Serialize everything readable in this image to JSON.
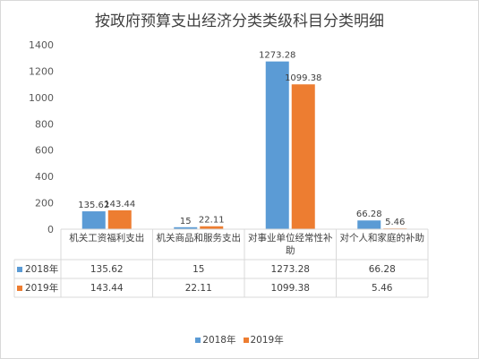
{
  "chart_data": {
    "type": "bar",
    "title": "按政府预算支出经济分类类级科目分类明细",
    "categories": [
      "机关工资福利支出",
      "机关商品和服务支出",
      "对事业单位经常性补助",
      "对个人和家庭的补助"
    ],
    "series": [
      {
        "name": "2018年",
        "values": [
          135.62,
          15,
          1273.28,
          66.28
        ],
        "labels": [
          "135.62",
          "15",
          "1273.28",
          "66.28"
        ],
        "color": "#5b9bd5"
      },
      {
        "name": "2019年",
        "values": [
          143.44,
          22.11,
          1099.38,
          5.46
        ],
        "labels": [
          "143.44",
          "22.11",
          "1099.38",
          "5.46"
        ],
        "color": "#ed7d31"
      }
    ],
    "y_ticks": [
      "0",
      "200",
      "400",
      "600",
      "800",
      "1000",
      "1200",
      "1400"
    ],
    "ylim": [
      0,
      1400
    ],
    "grid": false,
    "legend": "bottom",
    "data_table": true
  }
}
